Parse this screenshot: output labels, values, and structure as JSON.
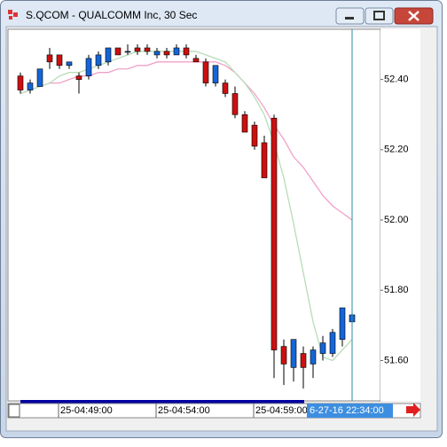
{
  "window_title": "S.QCOM - QUALCOMM Inc, 30 Sec",
  "chart_data": {
    "type": "candlestick",
    "open": [
      52.41,
      52.37,
      52.38,
      52.47,
      52.47,
      52.44,
      52.41,
      52.41,
      52.44,
      52.45,
      52.49,
      52.48,
      52.49,
      52.49,
      52.47,
      52.48,
      52.47,
      52.49,
      52.46,
      52.45,
      52.39,
      52.39,
      52.36,
      52.3,
      52.27,
      52.22,
      52.29,
      51.64,
      51.58,
      51.62,
      51.59,
      51.62,
      51.62,
      51.66,
      51.71
    ],
    "high": [
      52.42,
      52.4,
      52.43,
      52.49,
      52.47,
      52.45,
      52.42,
      52.47,
      52.48,
      52.49,
      52.49,
      52.5,
      52.5,
      52.5,
      52.49,
      52.49,
      52.5,
      52.5,
      52.47,
      52.46,
      52.44,
      52.4,
      52.38,
      52.31,
      52.28,
      52.24,
      52.3,
      51.66,
      51.66,
      51.64,
      51.64,
      51.67,
      51.69,
      51.75,
      51.79
    ],
    "low": [
      52.36,
      52.36,
      52.38,
      52.43,
      52.43,
      52.43,
      52.36,
      52.4,
      52.43,
      52.44,
      52.47,
      52.47,
      52.47,
      52.47,
      52.46,
      52.46,
      52.47,
      52.46,
      52.45,
      52.38,
      52.38,
      52.35,
      52.29,
      52.25,
      52.2,
      52.12,
      51.55,
      51.53,
      51.54,
      51.52,
      51.55,
      51.6,
      51.61,
      51.64,
      51.7
    ],
    "close": [
      52.37,
      52.39,
      52.43,
      52.45,
      52.44,
      52.45,
      52.4,
      52.46,
      52.47,
      52.49,
      52.47,
      52.48,
      52.48,
      52.48,
      52.48,
      52.47,
      52.49,
      52.47,
      52.45,
      52.39,
      52.44,
      52.36,
      52.3,
      52.25,
      52.21,
      52.12,
      51.63,
      51.59,
      51.66,
      51.58,
      51.63,
      51.65,
      51.68,
      51.75,
      51.73
    ],
    "up_color": "#1565d8",
    "down_color": "#cc1010",
    "overlays": [
      {
        "color": "#f2a0c8",
        "values": [
          52.36,
          52.37,
          52.38,
          52.39,
          52.39,
          52.4,
          52.41,
          52.41,
          52.42,
          52.42,
          52.43,
          52.43,
          52.44,
          52.44,
          52.45,
          52.45,
          52.45,
          52.45,
          52.45,
          52.45,
          52.45,
          52.44,
          52.42,
          52.39,
          52.36,
          52.32,
          52.27,
          52.23,
          52.18,
          52.15,
          52.11,
          52.07,
          52.04,
          52.02,
          52.0
        ]
      },
      {
        "color": "#b8dcb8",
        "values": [
          52.36,
          52.37,
          52.38,
          52.39,
          52.41,
          52.42,
          52.42,
          52.43,
          52.44,
          52.45,
          52.46,
          52.47,
          52.48,
          52.48,
          52.48,
          52.48,
          52.48,
          52.48,
          52.48,
          52.47,
          52.46,
          52.45,
          52.42,
          52.39,
          52.35,
          52.3,
          52.22,
          52.12,
          51.99,
          51.85,
          51.71,
          51.61,
          51.6,
          51.63,
          51.66
        ]
      }
    ],
    "ylim": [
      51.485,
      52.543
    ],
    "yticks": [
      {
        "value": 51.6,
        "label": "51.60"
      },
      {
        "value": 51.8,
        "label": "51.80"
      },
      {
        "value": 52.0,
        "label": "52.00"
      },
      {
        "value": 52.2,
        "label": "52.20"
      },
      {
        "value": 52.4,
        "label": "52.40"
      }
    ],
    "xticks": [
      {
        "value": 4,
        "label": "25-04:49:00"
      },
      {
        "value": 14,
        "label": "25-04:54:00"
      },
      {
        "value": 24,
        "label": "25-04:59:00"
      }
    ],
    "cursor_label": "6-27-16 22:34:00"
  }
}
